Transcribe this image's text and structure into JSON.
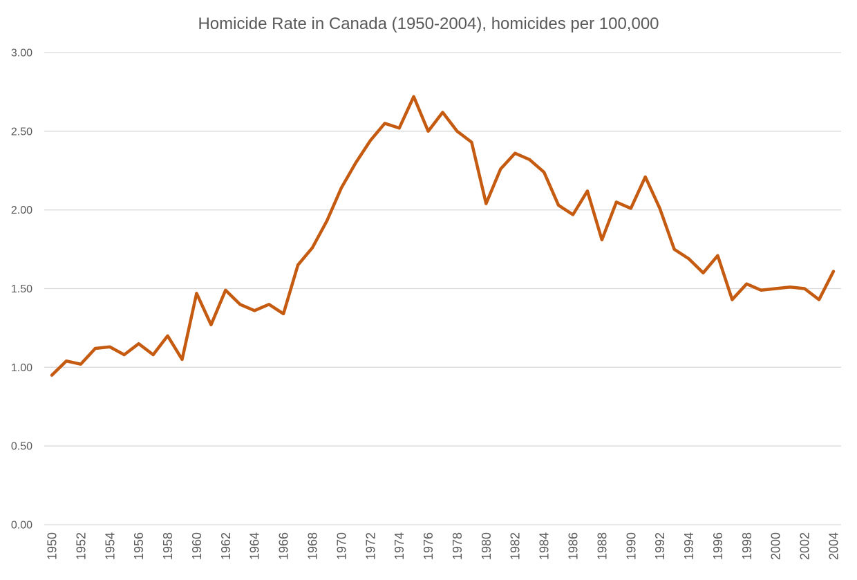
{
  "chart_data": {
    "type": "line",
    "title": "Homicide Rate in Canada (1950-2004), homicides per 100,000",
    "xlabel": "",
    "ylabel": "",
    "ylim": [
      0,
      3
    ],
    "y_ticks": [
      "0.00",
      "0.50",
      "1.00",
      "1.50",
      "2.00",
      "2.50",
      "3.00"
    ],
    "y_tick_values": [
      0,
      0.5,
      1,
      1.5,
      2,
      2.5,
      3
    ],
    "x_tick_labels": [
      "1950",
      "1952",
      "1954",
      "1956",
      "1958",
      "1960",
      "1962",
      "1964",
      "1966",
      "1968",
      "1970",
      "1972",
      "1974",
      "1976",
      "1978",
      "1980",
      "1982",
      "1984",
      "1986",
      "1988",
      "1990",
      "1992",
      "1994",
      "1996",
      "1998",
      "2000",
      "2002",
      "2004"
    ],
    "grid": true,
    "legend": "none",
    "line_color": "#C55A11",
    "grid_color": "#D9D9D9",
    "x": [
      1950,
      1951,
      1952,
      1953,
      1954,
      1955,
      1956,
      1957,
      1958,
      1959,
      1960,
      1961,
      1962,
      1963,
      1964,
      1965,
      1966,
      1967,
      1968,
      1969,
      1970,
      1971,
      1972,
      1973,
      1974,
      1975,
      1976,
      1977,
      1978,
      1979,
      1980,
      1981,
      1982,
      1983,
      1984,
      1985,
      1986,
      1987,
      1988,
      1989,
      1990,
      1991,
      1992,
      1993,
      1994,
      1995,
      1996,
      1997,
      1998,
      1999,
      2000,
      2001,
      2002,
      2003,
      2004
    ],
    "series": [
      {
        "values": [
          0.95,
          1.04,
          1.02,
          1.12,
          1.13,
          1.08,
          1.15,
          1.08,
          1.2,
          1.05,
          1.47,
          1.27,
          1.49,
          1.4,
          1.36,
          1.4,
          1.34,
          1.65,
          1.76,
          1.93,
          2.14,
          2.3,
          2.44,
          2.55,
          2.52,
          2.72,
          2.5,
          2.62,
          2.5,
          2.43,
          2.04,
          2.26,
          2.36,
          2.32,
          2.24,
          2.03,
          1.97,
          2.12,
          1.81,
          2.05,
          2.01,
          2.21,
          2.01,
          1.75,
          1.69,
          1.6,
          1.71,
          1.43,
          1.53,
          1.49,
          1.5,
          1.51,
          1.5,
          1.43,
          1.61
        ]
      }
    ]
  }
}
